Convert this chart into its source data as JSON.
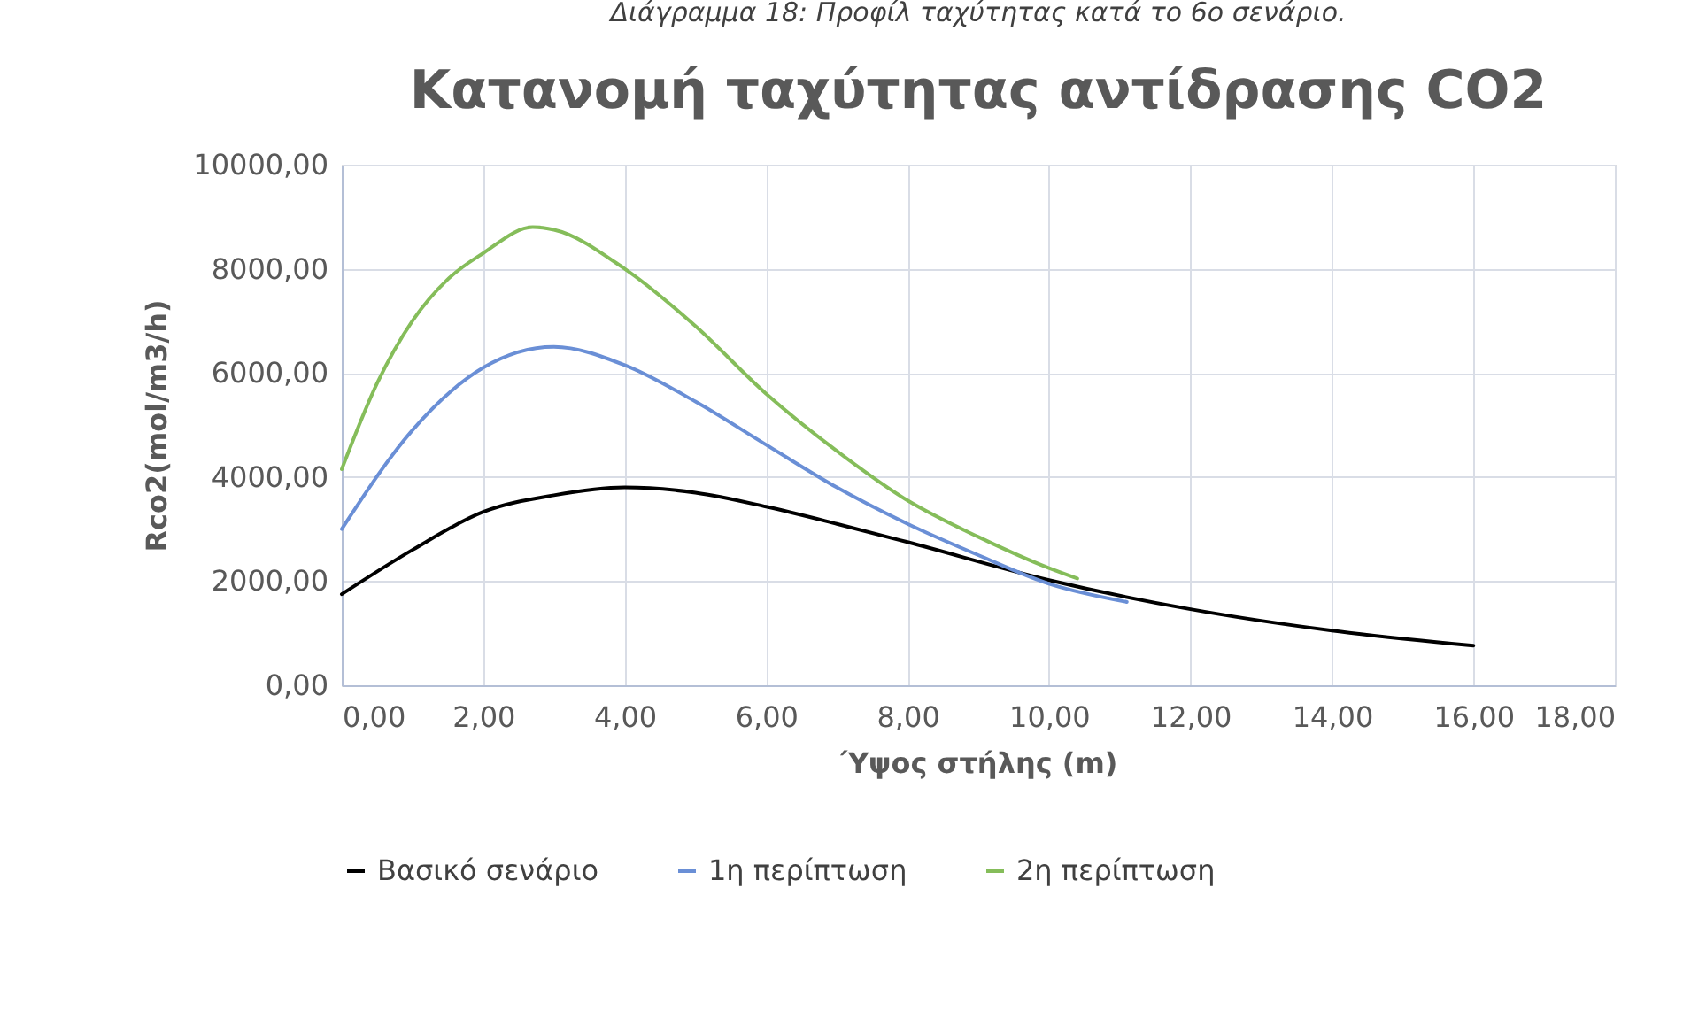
{
  "chart_data": {
    "type": "line",
    "title": "Κατανομή ταχύτητας αντίδρασης CO2",
    "xlabel": "Ύψος στήλης (m)",
    "ylabel": "Rco2(mol/m3/h)",
    "annotations": [
      "Διάγραμμα 18: Προφίλ ταχύτητας κατά το 6ο σενάριο."
    ],
    "xlim": [
      0,
      18
    ],
    "ylim": [
      0,
      10000
    ],
    "xticks": [
      {
        "value": 0,
        "label": "0,00"
      },
      {
        "value": 2,
        "label": "2,00"
      },
      {
        "value": 4,
        "label": "4,00"
      },
      {
        "value": 6,
        "label": "6,00"
      },
      {
        "value": 8,
        "label": "8,00"
      },
      {
        "value": 10,
        "label": "10,00"
      },
      {
        "value": 12,
        "label": "12,00"
      },
      {
        "value": 14,
        "label": "14,00"
      },
      {
        "value": 16,
        "label": "16,00"
      },
      {
        "value": 18,
        "label": "18,00"
      }
    ],
    "yticks": [
      {
        "value": 0,
        "label": "0,00"
      },
      {
        "value": 2000,
        "label": "2000,00"
      },
      {
        "value": 4000,
        "label": "4000,00"
      },
      {
        "value": 6000,
        "label": "6000,00"
      },
      {
        "value": 8000,
        "label": "8000,00"
      },
      {
        "value": 10000,
        "label": "10000,00"
      }
    ],
    "grid": true,
    "legend": "bottom",
    "marker": "none",
    "line_style": "solid",
    "series": [
      {
        "name": "Βασικό σενάριο",
        "color": "#000000",
        "x": [
          0,
          1,
          2,
          3,
          4,
          5,
          6,
          7,
          8,
          10,
          12,
          14,
          16
        ],
        "values": [
          1750,
          2600,
          3330,
          3650,
          3800,
          3700,
          3430,
          3100,
          2750,
          2020,
          1460,
          1050,
          760
        ]
      },
      {
        "name": "1η περίπτωση",
        "color": "#6a8fd6",
        "x": [
          0,
          1,
          2,
          3,
          4,
          5,
          6,
          7,
          8,
          9,
          10,
          11.1
        ],
        "values": [
          3000,
          4900,
          6100,
          6500,
          6150,
          5450,
          4620,
          3800,
          3100,
          2500,
          1950,
          1600
        ]
      },
      {
        "name": "2η περίπτωση",
        "color": "#85bd5a",
        "x": [
          0,
          0.5,
          1,
          1.5,
          2,
          2.7,
          3,
          4,
          5,
          6,
          7,
          8,
          9,
          10,
          10.4
        ],
        "values": [
          4150,
          5800,
          7000,
          7800,
          8300,
          8800,
          8750,
          8000,
          6900,
          5600,
          4500,
          3550,
          2850,
          2250,
          2050
        ]
      }
    ]
  }
}
